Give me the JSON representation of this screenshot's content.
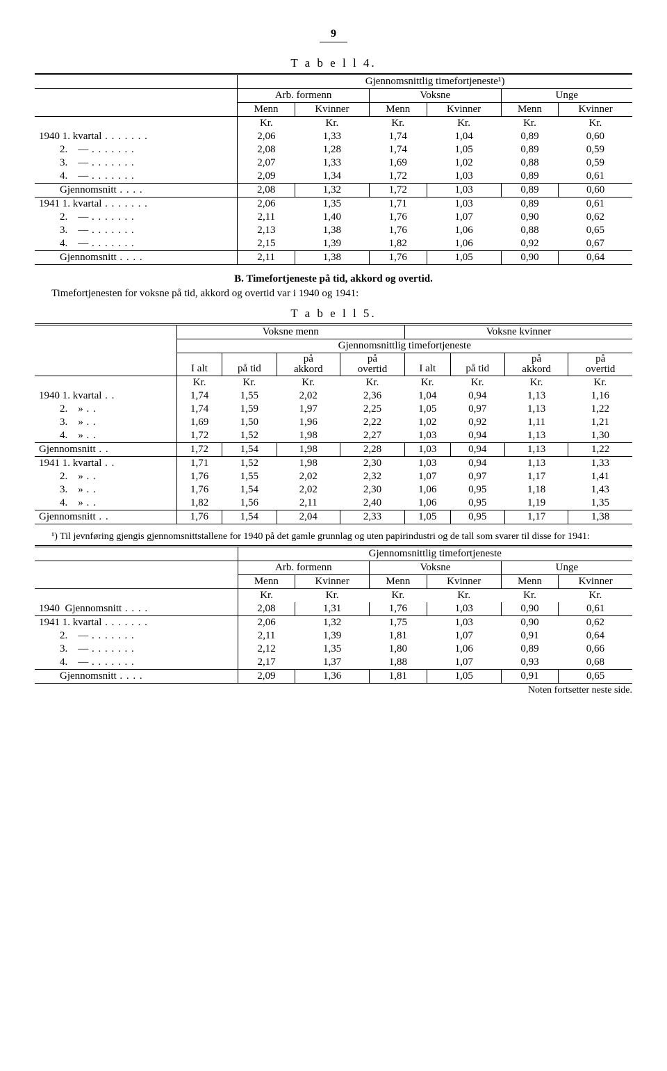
{
  "page_number": "9",
  "table4": {
    "title": "T a b e l l  4.",
    "super_header": "Gjennomsnittlig timefortjeneste¹)",
    "group_headers": [
      "Arb. formenn",
      "Voksne",
      "Unge"
    ],
    "sub_headers": [
      "Menn",
      "Kvinner",
      "Menn",
      "Kvinner",
      "Menn",
      "Kvinner"
    ],
    "unit_row": [
      "Kr.",
      "Kr.",
      "Kr.",
      "Kr.",
      "Kr.",
      "Kr."
    ],
    "rows": [
      {
        "label": "1940 1. kvartal",
        "v": [
          "2,06",
          "1,33",
          "1,74",
          "1,04",
          "0,89",
          "0,60"
        ]
      },
      {
        "label": "        2.    —",
        "v": [
          "2,08",
          "1,28",
          "1,74",
          "1,05",
          "0,89",
          "0,59"
        ]
      },
      {
        "label": "        3.    —",
        "v": [
          "2,07",
          "1,33",
          "1,69",
          "1,02",
          "0,88",
          "0,59"
        ]
      },
      {
        "label": "        4.    —",
        "v": [
          "2,09",
          "1,34",
          "1,72",
          "1,03",
          "0,89",
          "0,61"
        ]
      }
    ],
    "avg1": {
      "label": "        Gjennomsnitt",
      "v": [
        "2,08",
        "1,32",
        "1,72",
        "1,03",
        "0,89",
        "0,60"
      ]
    },
    "rows2": [
      {
        "label": "1941 1. kvartal",
        "v": [
          "2,06",
          "1,35",
          "1,71",
          "1,03",
          "0,89",
          "0,61"
        ]
      },
      {
        "label": "        2.    —",
        "v": [
          "2,11",
          "1,40",
          "1,76",
          "1,07",
          "0,90",
          "0,62"
        ]
      },
      {
        "label": "        3.    —",
        "v": [
          "2,13",
          "1,38",
          "1,76",
          "1,06",
          "0,88",
          "0,65"
        ]
      },
      {
        "label": "        4.    —",
        "v": [
          "2,15",
          "1,39",
          "1,82",
          "1,06",
          "0,92",
          "0,67"
        ]
      }
    ],
    "avg2": {
      "label": "        Gjennomsnitt",
      "v": [
        "2,11",
        "1,38",
        "1,76",
        "1,05",
        "0,90",
        "0,64"
      ]
    }
  },
  "sectionB": {
    "heading": "B. Timefortjeneste på tid, akkord og overtid.",
    "text": "Timefortjenesten for voksne på tid, akkord og overtid var i 1940 og 1941:"
  },
  "table5": {
    "title": "T a b e l l  5.",
    "group_headers": [
      "Voksne menn",
      "Voksne kvinner"
    ],
    "super_sub": "Gjennomsnittlig timefortjeneste",
    "col_headers": [
      "I alt",
      "på tid",
      "på akkord",
      "på overtid",
      "I alt",
      "på tid",
      "på akkord",
      "på overtid"
    ],
    "unit_row": [
      "Kr.",
      "Kr.",
      "Kr.",
      "Kr.",
      "Kr.",
      "Kr.",
      "Kr.",
      "Kr."
    ],
    "rows1": [
      {
        "label": "1940 1. kvartal",
        "v": [
          "1,74",
          "1,55",
          "2,02",
          "2,36",
          "1,04",
          "0,94",
          "1,13",
          "1,16"
        ]
      },
      {
        "label": "        2.    »",
        "v": [
          "1,74",
          "1,59",
          "1,97",
          "2,25",
          "1,05",
          "0,97",
          "1,13",
          "1,22"
        ]
      },
      {
        "label": "        3.    »",
        "v": [
          "1,69",
          "1,50",
          "1,96",
          "2,22",
          "1,02",
          "0,92",
          "1,11",
          "1,21"
        ]
      },
      {
        "label": "        4.    »",
        "v": [
          "1,72",
          "1,52",
          "1,98",
          "2,27",
          "1,03",
          "0,94",
          "1,13",
          "1,30"
        ]
      }
    ],
    "avg1": {
      "label": "Gjennomsnitt",
      "v": [
        "1,72",
        "1,54",
        "1,98",
        "2,28",
        "1,03",
        "0,94",
        "1,13",
        "1,22"
      ]
    },
    "rows2": [
      {
        "label": "1941 1. kvartal",
        "v": [
          "1,71",
          "1,52",
          "1,98",
          "2,30",
          "1,03",
          "0,94",
          "1,13",
          "1,33"
        ]
      },
      {
        "label": "        2.    »",
        "v": [
          "1,76",
          "1,55",
          "2,02",
          "2,32",
          "1,07",
          "0,97",
          "1,17",
          "1,41"
        ]
      },
      {
        "label": "        3.    »",
        "v": [
          "1,76",
          "1,54",
          "2,02",
          "2,30",
          "1,06",
          "0,95",
          "1,18",
          "1,43"
        ]
      },
      {
        "label": "        4.    »",
        "v": [
          "1,82",
          "1,56",
          "2,11",
          "2,40",
          "1,06",
          "0,95",
          "1,19",
          "1,35"
        ]
      }
    ],
    "avg2": {
      "label": "Gjennomsnitt",
      "v": [
        "1,76",
        "1,54",
        "2,04",
        "2,33",
        "1,05",
        "0,95",
        "1,17",
        "1,38"
      ]
    }
  },
  "footnote": "¹) Til jevnføring gjengis gjennomsnittstallene for 1940 på det gamle grunnlag og uten papirindustri og de tall som svarer til disse for 1941:",
  "table6": {
    "super_header": "Gjennomsnittlig timefortjeneste",
    "group_headers": [
      "Arb. formenn",
      "Voksne",
      "Unge"
    ],
    "sub_headers": [
      "Menn",
      "Kvinner",
      "Menn",
      "Kvinner",
      "Menn",
      "Kvinner"
    ],
    "unit_row": [
      "Kr.",
      "Kr.",
      "Kr.",
      "Kr.",
      "Kr.",
      "Kr."
    ],
    "row1940": {
      "label": "1940  Gjennomsnitt",
      "v": [
        "2,08",
        "1,31",
        "1,76",
        "1,03",
        "0,90",
        "0,61"
      ]
    },
    "rows1941": [
      {
        "label": "1941 1. kvartal",
        "v": [
          "2,06",
          "1,32",
          "1,75",
          "1,03",
          "0,90",
          "0,62"
        ]
      },
      {
        "label": "        2.    —",
        "v": [
          "2,11",
          "1,39",
          "1,81",
          "1,07",
          "0,91",
          "0,64"
        ]
      },
      {
        "label": "        3.    —",
        "v": [
          "2,12",
          "1,35",
          "1,80",
          "1,06",
          "0,89",
          "0,66"
        ]
      },
      {
        "label": "        4.    —",
        "v": [
          "2,17",
          "1,37",
          "1,88",
          "1,07",
          "0,93",
          "0,68"
        ]
      }
    ],
    "avg": {
      "label": "        Gjennomsnitt",
      "v": [
        "2,09",
        "1,36",
        "1,81",
        "1,05",
        "0,91",
        "0,65"
      ]
    }
  },
  "continue_note": "Noten fortsetter neste side."
}
